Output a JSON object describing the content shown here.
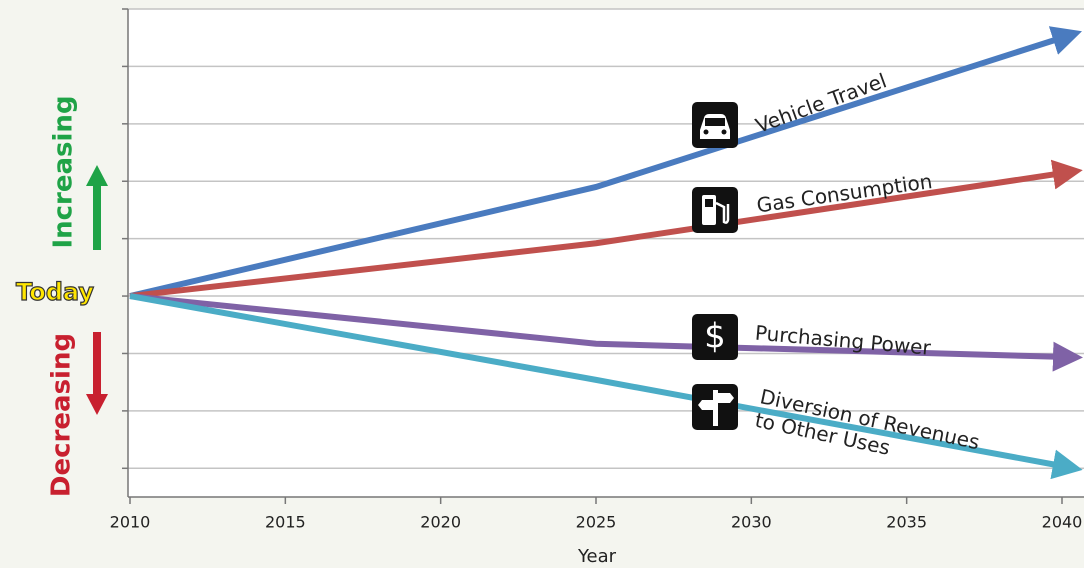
{
  "chart_data": {
    "type": "line",
    "x_label": "Year",
    "x": [
      2010,
      2025,
      2040
    ],
    "xlim": [
      2010,
      2040
    ],
    "xticks": [
      2010,
      2015,
      2020,
      2025,
      2030,
      2035,
      2040
    ],
    "ylim": [
      -3.5,
      5
    ],
    "yticks": [
      -3,
      -2,
      -1,
      0,
      1,
      2,
      3,
      4,
      5
    ],
    "grid": true,
    "annotations": {
      "increasing": "Increasing",
      "today": "Today",
      "decreasing": "Decreasing"
    },
    "series": [
      {
        "name": "Vehicle Travel",
        "color": "#4a7bbf",
        "values": [
          0,
          1.9,
          4.5
        ]
      },
      {
        "name": "Gas Consumption",
        "color": "#c0504d",
        "values": [
          0,
          0.92,
          2.14
        ]
      },
      {
        "name": "Purchasing Power",
        "color": "#7f62a6",
        "values": [
          0,
          -0.83,
          -1.06
        ]
      },
      {
        "name": "Diversion of Revenues to Other Uses",
        "color": "#4bacc6",
        "values": [
          0,
          -1.46,
          -2.96
        ]
      }
    ]
  }
}
